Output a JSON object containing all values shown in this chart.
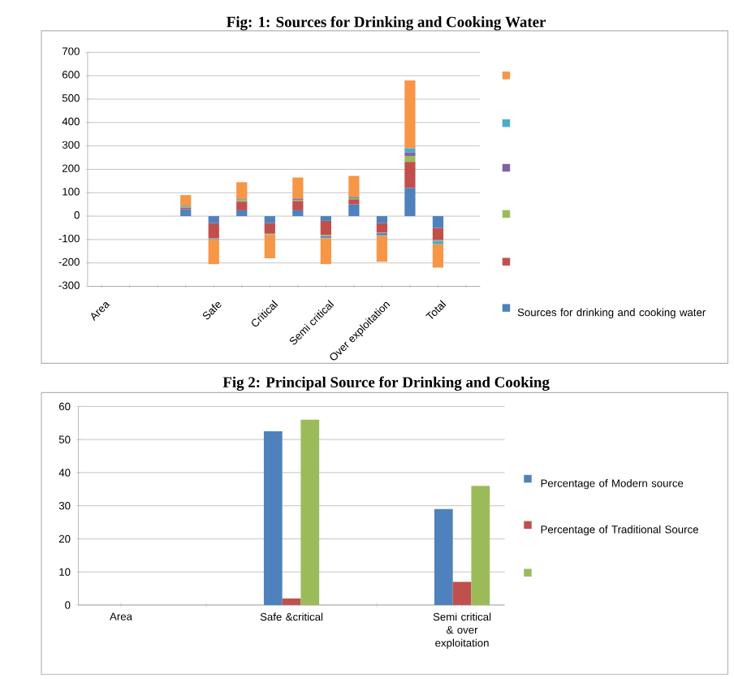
{
  "chart_data": [
    {
      "type": "bar",
      "title": "Fig: 1: Sources for Drinking and Cooking Water",
      "stacked": true,
      "categories": [
        "Area",
        null,
        null,
        null,
        "Safe",
        null,
        "Critical",
        null,
        "Semi critical",
        null,
        "Over exploitation",
        null,
        "Total",
        null
      ],
      "series": [
        {
          "name": "Sources for drinking and cooking water",
          "color": "#4f81bd",
          "values": [
            null,
            null,
            null,
            30,
            -30,
            25,
            -30,
            25,
            -20,
            50,
            -30,
            120,
            -50,
            null
          ]
        },
        {
          "color": "#c0504d",
          "values": [
            null,
            null,
            null,
            5,
            -65,
            37,
            -45,
            40,
            -60,
            22,
            -40,
            112,
            -52,
            null
          ]
        },
        {
          "color": "#9bbb59",
          "values": [
            null,
            null,
            null,
            5,
            -3,
            6,
            -3,
            5,
            -5,
            5,
            -3,
            25,
            -3,
            null
          ]
        },
        {
          "color": "#8064a2",
          "values": [
            null,
            null,
            null,
            2,
            -2,
            2,
            -1,
            5,
            -5,
            3,
            -7,
            15,
            -3,
            null
          ]
        },
        {
          "color": "#4bacc6",
          "values": [
            null,
            null,
            null,
            3,
            -2,
            3,
            -1,
            null,
            -5,
            3,
            -5,
            18,
            -12,
            null
          ]
        },
        {
          "color": "#f79646",
          "values": [
            null,
            null,
            null,
            45,
            -103,
            72,
            -100,
            90,
            -110,
            89,
            -110,
            290,
            -100,
            null
          ]
        }
      ],
      "ylim": [
        -300,
        700
      ],
      "yticks": [
        -300,
        -200,
        -100,
        0,
        100,
        200,
        300,
        400,
        500,
        600,
        700
      ],
      "grid": "y",
      "legend": "right"
    },
    {
      "type": "bar",
      "title": "Fig 2: Principal Source for Drinking and Cooking",
      "categories": [
        "Area",
        null,
        "Safe &critical",
        null,
        "Semi critical & over exploitation"
      ],
      "series": [
        {
          "name": "Percentage of Modern source",
          "color": "#4f81bd",
          "values": [
            null,
            null,
            52.5,
            null,
            29
          ]
        },
        {
          "name": "Percentage of Traditional Source",
          "color": "#c0504d",
          "values": [
            null,
            null,
            2,
            null,
            7
          ]
        },
        {
          "color": "#9bbb59",
          "values": [
            null,
            null,
            56,
            null,
            36
          ]
        }
      ],
      "ylim": [
        0,
        60
      ],
      "yticks": [
        0,
        10,
        20,
        30,
        40,
        50,
        60
      ],
      "grid": "y",
      "legend": "right"
    }
  ]
}
